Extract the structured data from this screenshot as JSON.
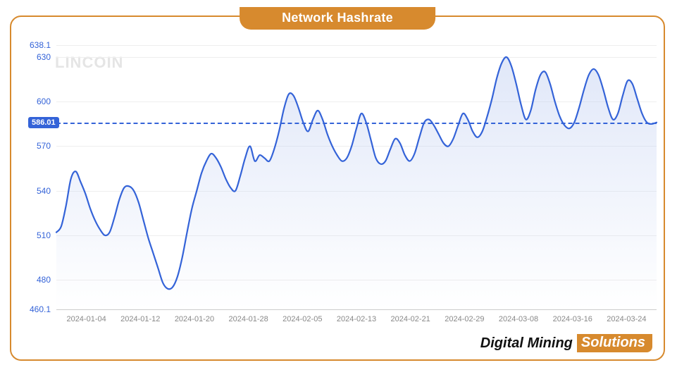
{
  "title": "Network Hashrate",
  "watermark": "LINCOIN",
  "footer": {
    "brand_a": "Digital Mining",
    "brand_b": "Solutions"
  },
  "chart": {
    "type": "area",
    "ylim": [
      460.1,
      638.1
    ],
    "yticks": [
      460.1,
      480,
      510,
      540,
      570,
      600,
      630,
      638.1
    ],
    "xticks": [
      "2024-01-04",
      "2024-01-12",
      "2024-01-20",
      "2024-01-28",
      "2024-02-05",
      "2024-02-13",
      "2024-02-21",
      "2024-02-29",
      "2024-03-08",
      "2024-03-16",
      "2024-03-24"
    ],
    "xtick_positions_pct": [
      5,
      14,
      23,
      32,
      41,
      50,
      59,
      68,
      77,
      86,
      95
    ],
    "current_value": 586.01,
    "line_color": "#3463d8",
    "line_width": 2.2,
    "fill_top_color": "#c7d4f3",
    "fill_opacity": 0.55,
    "grid_color": "#eeeeee",
    "axis_color": "#cccccc",
    "background_color": "#ffffff",
    "dash_color": "#3463d8",
    "badge_bg": "#3463d8",
    "badge_text_color": "#ffffff",
    "tick_label_color_y": "#3463d8",
    "tick_label_color_x": "#888888",
    "tick_fontsize": 12,
    "series": [
      512,
      516,
      530,
      548,
      553,
      546,
      538,
      528,
      520,
      514,
      510,
      512,
      522,
      534,
      542,
      543,
      540,
      532,
      520,
      508,
      498,
      488,
      478,
      474,
      475,
      482,
      495,
      512,
      528,
      540,
      552,
      560,
      565,
      562,
      556,
      548,
      542,
      540,
      550,
      562,
      570,
      560,
      564,
      562,
      560,
      568,
      580,
      595,
      605,
      604,
      596,
      586,
      580,
      588,
      594,
      588,
      578,
      570,
      564,
      560,
      562,
      570,
      582,
      592,
      586,
      574,
      562,
      558,
      560,
      568,
      575,
      572,
      564,
      560,
      565,
      576,
      586,
      588,
      584,
      578,
      572,
      570,
      575,
      584,
      592,
      588,
      580,
      576,
      580,
      590,
      602,
      616,
      626,
      630,
      624,
      612,
      598,
      588,
      594,
      608,
      618,
      620,
      612,
      600,
      590,
      584,
      582,
      586,
      596,
      608,
      618,
      622,
      618,
      608,
      596,
      588,
      592,
      604,
      614,
      612,
      602,
      592,
      586,
      585,
      586
    ]
  },
  "colors": {
    "accent": "#d78a2e",
    "card_border": "#d78a2e",
    "title_text": "#ffffff"
  }
}
